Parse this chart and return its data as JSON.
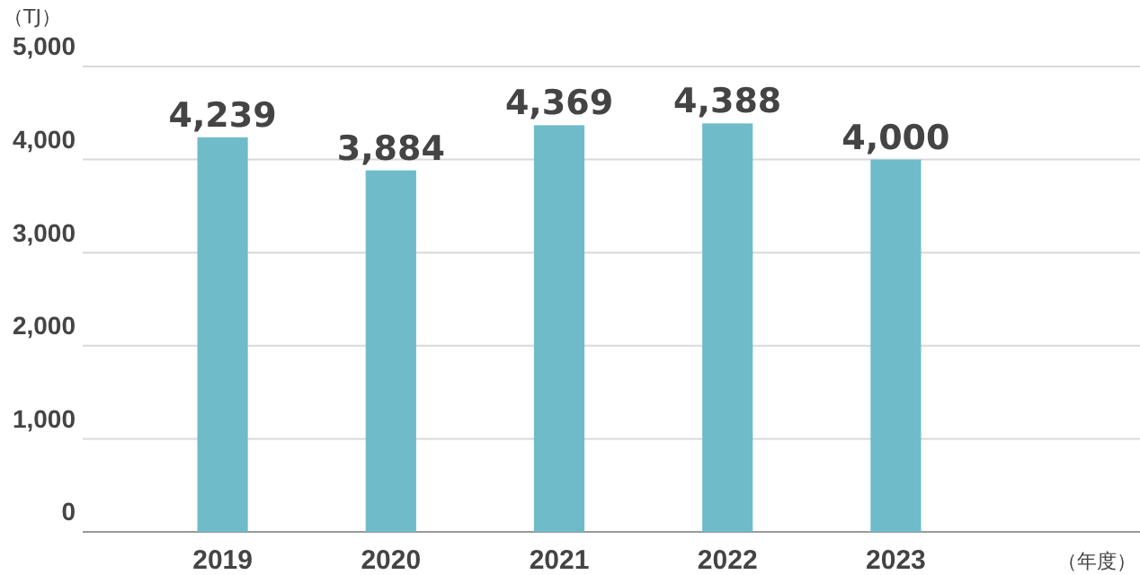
{
  "chart_data": {
    "type": "bar",
    "ylabel": "（TJ）",
    "xlabel": "（年度）",
    "categories": [
      "2019",
      "2020",
      "2021",
      "2022",
      "2023"
    ],
    "values": [
      4239,
      3884,
      4369,
      4388,
      4000
    ],
    "color": "#6fbbca",
    "ylim": [
      0,
      5000
    ],
    "yticks": [
      {
        "value": 0,
        "label": "0"
      },
      {
        "value": 1000,
        "label": "1,000"
      },
      {
        "value": 2000,
        "label": "2,000"
      },
      {
        "value": 3000,
        "label": "3,000"
      },
      {
        "value": 4000,
        "label": "4,000"
      },
      {
        "value": 5000,
        "label": "5,000"
      }
    ],
    "grid": "y",
    "value_labels": [
      "4,239",
      "3,884",
      "4,369",
      "4,388",
      "4,000"
    ]
  }
}
